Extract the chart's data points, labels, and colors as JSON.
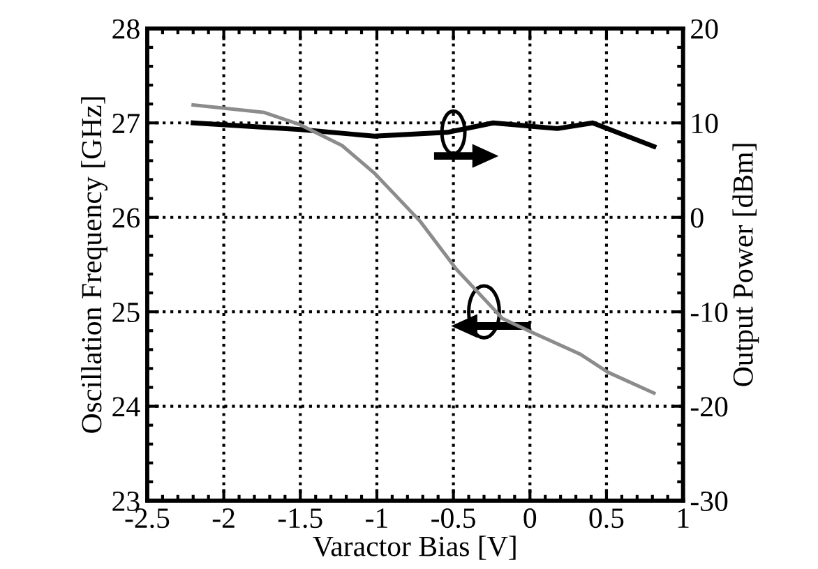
{
  "chart_data": {
    "type": "line",
    "xlabel": "Varactor Bias [V]",
    "ylabel": "Oscillation Frequency [GHz]",
    "y2label": "Output Power [dBm]",
    "xlim": [
      -2.5,
      1
    ],
    "xticks": [
      -2.5,
      -2,
      -1.5,
      -1,
      -0.5,
      0,
      0.5,
      1
    ],
    "ylim": [
      23,
      28
    ],
    "yticks": [
      23,
      24,
      25,
      26,
      27,
      28
    ],
    "y2lim": [
      -30,
      20
    ],
    "y2ticks": [
      -30,
      -20,
      -10,
      0,
      10,
      20
    ],
    "grid": true,
    "legend": false,
    "line_style": "solid",
    "marker": "none",
    "series": [
      {
        "color": "#8c8c8c",
        "x": [
          -2.2,
          -1.735,
          -1.5,
          -1.227,
          -1.017,
          -0.718,
          -0.48,
          -0.18,
          0.03,
          0.33,
          0.51,
          0.81
        ],
        "values": [
          27.19,
          27.11,
          26.98,
          26.76,
          26.47,
          25.96,
          25.45,
          24.93,
          24.77,
          24.55,
          24.36,
          24.14
        ]
      },
      {
        "color": "#000000",
        "axis": "y2",
        "x": [
          -2.2,
          -1.5,
          -1.017,
          -0.54,
          -0.24,
          0.18,
          0.41,
          0.81
        ],
        "values": [
          10,
          9.3,
          8.6,
          9.0,
          10,
          9.4,
          10,
          7.5
        ]
      }
    ]
  }
}
